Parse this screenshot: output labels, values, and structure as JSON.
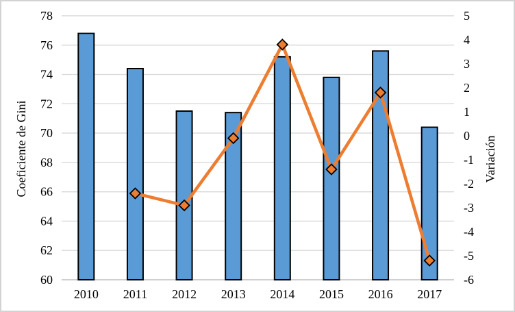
{
  "chart_data": {
    "type": "bar+line",
    "categories": [
      "2010",
      "2011",
      "2012",
      "2013",
      "2014",
      "2015",
      "2016",
      "2017"
    ],
    "series": [
      {
        "name": "Coeficiente de Gini",
        "type": "bar",
        "axis": "left",
        "values": [
          76.8,
          74.4,
          71.5,
          71.4,
          75.2,
          73.8,
          75.6,
          70.4
        ],
        "fill": "#5B9BD5",
        "border": "#000000"
      },
      {
        "name": "Variación",
        "type": "line",
        "axis": "right",
        "values": [
          null,
          -2.4,
          -2.9,
          -0.1,
          3.8,
          -1.4,
          1.8,
          -5.2
        ],
        "color": "#ED7D31",
        "marker": "diamond",
        "marker_fill": "#ED7D31",
        "marker_border": "#000000"
      }
    ],
    "left_axis": {
      "label": "Coeficiente de Gini",
      "min": 60,
      "max": 78,
      "step": 2,
      "ticks": [
        60,
        62,
        64,
        66,
        68,
        70,
        72,
        74,
        76,
        78
      ]
    },
    "right_axis": {
      "label": "Variación",
      "min": -6,
      "max": 5,
      "step": 1,
      "ticks": [
        -6,
        -5,
        -4,
        -3,
        -2,
        -1,
        0,
        1,
        2,
        3,
        4,
        5
      ]
    },
    "grid": true,
    "legend": false,
    "colors": {
      "gridline": "#D9D9D9",
      "axis_line": "#BFBFBF",
      "text": "#000000",
      "background": "#FFFFFF",
      "frame_border": "#D3D3D3"
    }
  }
}
